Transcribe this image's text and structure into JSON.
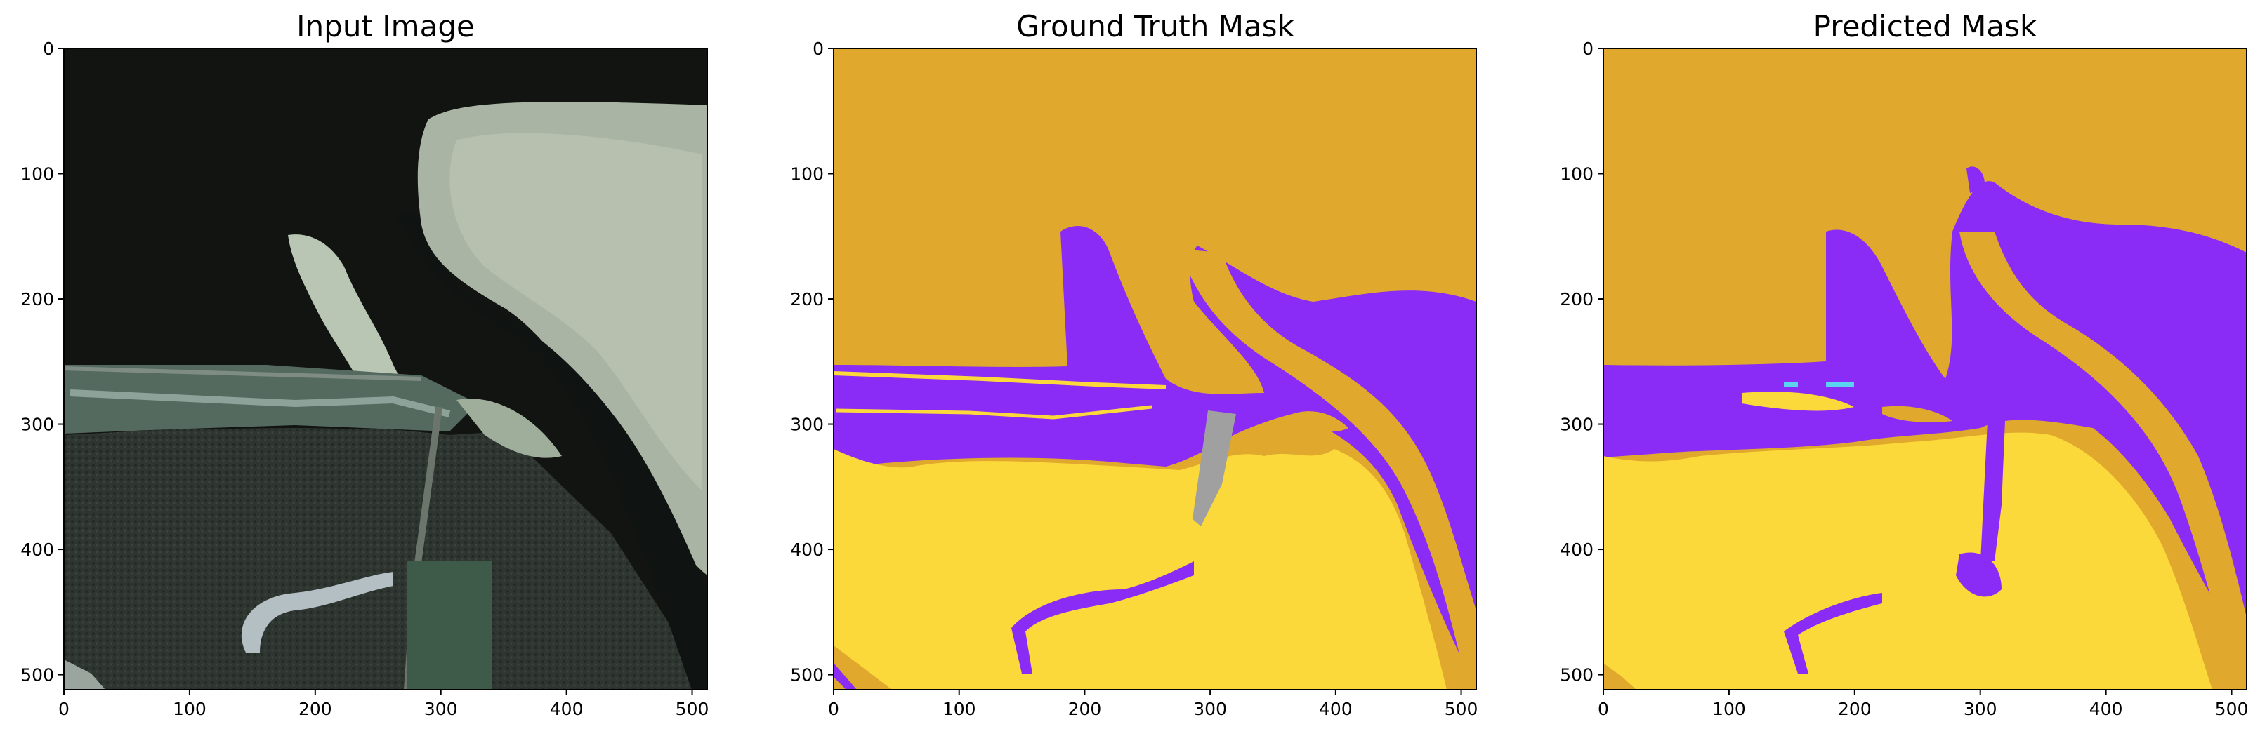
{
  "figure": {
    "panels": [
      {
        "title": "Input Image",
        "xticks": [
          "0",
          "100",
          "200",
          "300",
          "400",
          "500"
        ],
        "yticks": [
          "0",
          "100",
          "200",
          "300",
          "400",
          "500"
        ]
      },
      {
        "title": "Ground Truth Mask",
        "xticks": [
          "0",
          "100",
          "200",
          "300",
          "400",
          "500"
        ],
        "yticks": [
          "0",
          "100",
          "200",
          "300",
          "400",
          "500"
        ]
      },
      {
        "title": "Predicted Mask",
        "xticks": [
          "0",
          "100",
          "200",
          "300",
          "400",
          "500"
        ],
        "yticks": [
          "0",
          "100",
          "200",
          "300",
          "400",
          "500"
        ]
      }
    ],
    "colors": {
      "mask_orange": "#e0a82c",
      "mask_purple": "#8a2cf5",
      "mask_yellow": "#fbd93a",
      "mask_gray": "#a0a0a0",
      "mask_cyan": "#5ad2f0",
      "sat_dark": "#111411",
      "sat_forest": "#2f3631",
      "sat_sand": "#a9b4a4"
    }
  }
}
